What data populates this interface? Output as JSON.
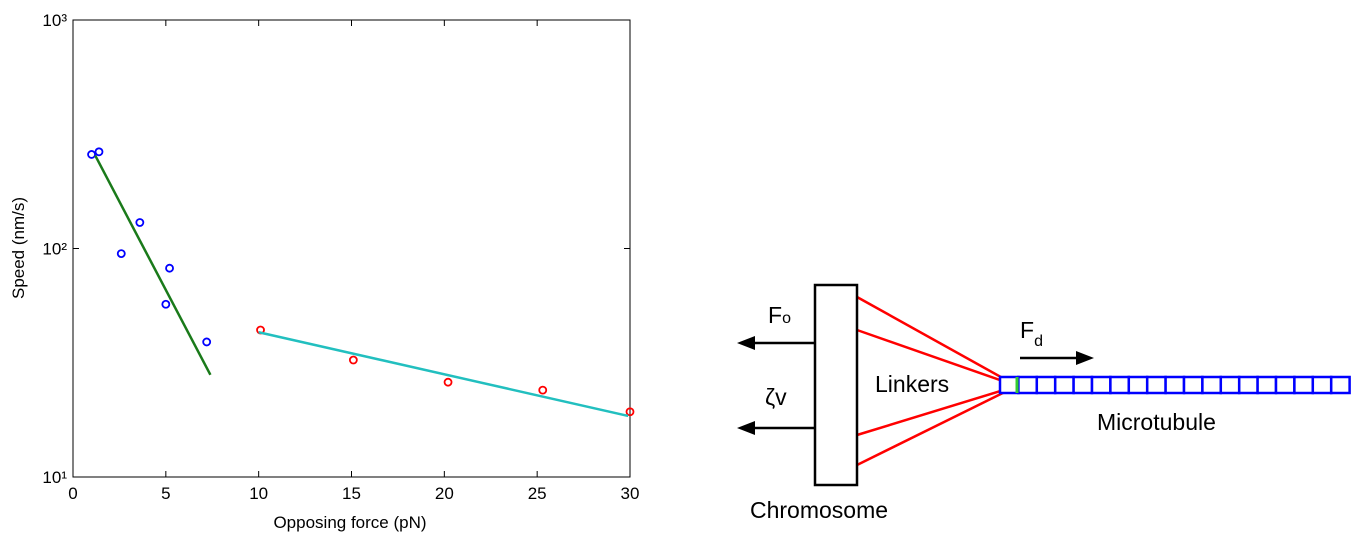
{
  "chart_data": {
    "type": "scatter",
    "x_label": "Opposing force (pN)",
    "y_label": "Speed (nm/s)",
    "xlim": [
      0,
      30
    ],
    "xticks": [
      0,
      5,
      10,
      15,
      20,
      25,
      30
    ],
    "ylim": [
      10,
      1000
    ],
    "yscale": "log",
    "yticks": [
      {
        "value": 10,
        "label": "10¹"
      },
      {
        "value": 100,
        "label": "10²"
      },
      {
        "value": 1000,
        "label": "10³"
      }
    ],
    "series": [
      {
        "style": "markers",
        "color": "#0000ff",
        "x": [
          1.0,
          1.4,
          2.6,
          3.6,
          5.0,
          5.2,
          7.2
        ],
        "values": [
          258,
          265,
          95,
          130,
          57,
          82,
          39
        ]
      },
      {
        "style": "markers",
        "color": "#ff0000",
        "x": [
          10.1,
          15.1,
          20.2,
          25.3,
          30.0
        ],
        "values": [
          44,
          32.5,
          26,
          24,
          19.3
        ]
      },
      {
        "style": "line",
        "color": "#1a7a1a",
        "x": [
          1.2,
          7.4
        ],
        "values": [
          255,
          28
        ]
      },
      {
        "style": "line",
        "color": "#22bfbf",
        "x": [
          10.0,
          29.9
        ],
        "values": [
          43,
          18.5
        ]
      }
    ]
  },
  "diagram": {
    "opposing_force": {
      "symbol": "F",
      "subscript": "o"
    },
    "drag": "ζv",
    "linkers": "Linkers",
    "driving_force": {
      "symbol": "F",
      "subscript": "d"
    },
    "microtubule": "Microtubule",
    "chromosome": "Chromosome"
  }
}
